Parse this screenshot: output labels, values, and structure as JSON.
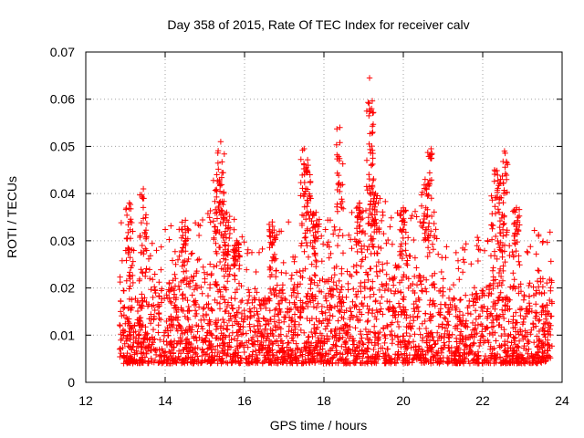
{
  "chart_data": {
    "type": "scatter",
    "title": "Day 358 of 2015, Rate Of TEC Index for receiver calv",
    "xlabel": "GPS time / hours",
    "ylabel": "ROTI / TECUs",
    "xlim": [
      12,
      24
    ],
    "ylim": [
      0,
      0.07
    ],
    "xticks": [
      12,
      14,
      16,
      18,
      20,
      22,
      24
    ],
    "yticks": [
      0,
      0.01,
      0.02,
      0.03,
      0.04,
      0.05,
      0.06,
      0.07
    ],
    "ytick_labels": [
      "0",
      "0.01",
      "0.02",
      "0.03",
      "0.04",
      "0.05",
      "0.06",
      "0.07"
    ],
    "grid": true,
    "marker": "+",
    "marker_color": "#ff0000",
    "x_range_of_data": [
      12.85,
      23.75
    ],
    "series": [
      {
        "name": "ROTI",
        "baseline_profile": [
          {
            "x": 12.9,
            "low": 0.004,
            "high": 0.017
          },
          {
            "x": 13.5,
            "low": 0.004,
            "high": 0.02
          },
          {
            "x": 14.0,
            "low": 0.004,
            "high": 0.022
          },
          {
            "x": 14.5,
            "low": 0.004,
            "high": 0.023
          },
          {
            "x": 15.0,
            "low": 0.004,
            "high": 0.024
          },
          {
            "x": 15.5,
            "low": 0.004,
            "high": 0.026
          },
          {
            "x": 16.0,
            "low": 0.004,
            "high": 0.02
          },
          {
            "x": 16.5,
            "low": 0.004,
            "high": 0.018
          },
          {
            "x": 17.0,
            "low": 0.004,
            "high": 0.022
          },
          {
            "x": 17.5,
            "low": 0.004,
            "high": 0.025
          },
          {
            "x": 18.0,
            "low": 0.004,
            "high": 0.022
          },
          {
            "x": 18.5,
            "low": 0.004,
            "high": 0.024
          },
          {
            "x": 19.0,
            "low": 0.004,
            "high": 0.026
          },
          {
            "x": 19.5,
            "low": 0.004,
            "high": 0.028
          },
          {
            "x": 20.0,
            "low": 0.004,
            "high": 0.026
          },
          {
            "x": 20.5,
            "low": 0.004,
            "high": 0.024
          },
          {
            "x": 21.0,
            "low": 0.004,
            "high": 0.02
          },
          {
            "x": 21.5,
            "low": 0.004,
            "high": 0.017
          },
          {
            "x": 22.0,
            "low": 0.004,
            "high": 0.02
          },
          {
            "x": 22.5,
            "low": 0.004,
            "high": 0.022
          },
          {
            "x": 23.0,
            "low": 0.004,
            "high": 0.02
          },
          {
            "x": 23.5,
            "low": 0.004,
            "high": 0.022
          },
          {
            "x": 23.75,
            "low": 0.005,
            "high": 0.022
          }
        ],
        "peaks": [
          {
            "x": 13.1,
            "y": 0.038
          },
          {
            "x": 13.45,
            "y": 0.041
          },
          {
            "x": 14.5,
            "y": 0.033
          },
          {
            "x": 15.3,
            "y": 0.044
          },
          {
            "x": 15.4,
            "y": 0.051
          },
          {
            "x": 15.55,
            "y": 0.036
          },
          {
            "x": 15.8,
            "y": 0.03
          },
          {
            "x": 16.7,
            "y": 0.034
          },
          {
            "x": 17.5,
            "y": 0.0495
          },
          {
            "x": 17.6,
            "y": 0.046
          },
          {
            "x": 17.8,
            "y": 0.036
          },
          {
            "x": 18.4,
            "y": 0.054
          },
          {
            "x": 18.9,
            "y": 0.038
          },
          {
            "x": 19.15,
            "y": 0.0645
          },
          {
            "x": 19.2,
            "y": 0.058
          },
          {
            "x": 19.3,
            "y": 0.04
          },
          {
            "x": 20.0,
            "y": 0.037
          },
          {
            "x": 20.55,
            "y": 0.043
          },
          {
            "x": 20.7,
            "y": 0.0495
          },
          {
            "x": 22.3,
            "y": 0.045
          },
          {
            "x": 22.45,
            "y": 0.043
          },
          {
            "x": 22.55,
            "y": 0.049
          },
          {
            "x": 22.85,
            "y": 0.037
          }
        ]
      }
    ]
  }
}
